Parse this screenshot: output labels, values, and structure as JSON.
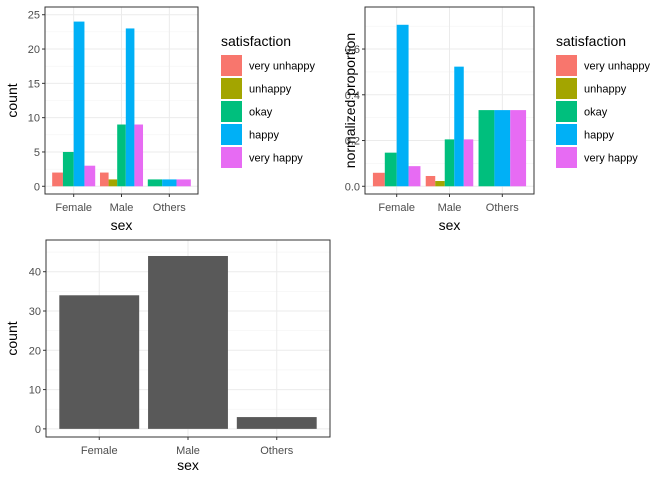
{
  "chart_data": [
    {
      "id": "p1",
      "type": "bar",
      "layout": "grouped",
      "xlabel": "sex",
      "ylabel": "count",
      "categories": [
        "Female",
        "Male",
        "Others"
      ],
      "ylim": [
        0,
        25
      ],
      "yticks": [
        0,
        5,
        10,
        15,
        20,
        25
      ],
      "ytick_labels": [
        "0",
        "5",
        "10",
        "15",
        "20",
        "25"
      ],
      "grid": true,
      "legend_title": "satisfaction",
      "legend_position": "right",
      "series": [
        {
          "name": "very unhappy",
          "color": "#F8766D",
          "values": [
            2,
            2,
            null
          ]
        },
        {
          "name": "unhappy",
          "color": "#A3A500",
          "values": [
            null,
            1,
            null
          ]
        },
        {
          "name": "okay",
          "color": "#00BF7D",
          "values": [
            5,
            9,
            1
          ]
        },
        {
          "name": "happy",
          "color": "#00B0F6",
          "values": [
            24,
            23,
            1
          ]
        },
        {
          "name": "very happy",
          "color": "#E76BF3",
          "values": [
            3,
            9,
            1
          ]
        }
      ]
    },
    {
      "id": "p2",
      "type": "bar",
      "layout": "grouped",
      "xlabel": "sex",
      "ylabel": "normalized proportion",
      "categories": [
        "Female",
        "Male",
        "Others"
      ],
      "ylim": [
        0,
        0.75
      ],
      "yticks": [
        0,
        0.2,
        0.4,
        0.6
      ],
      "ytick_labels": [
        "0.0",
        "0.2",
        "0.4",
        "0.6"
      ],
      "grid": true,
      "legend_title": "satisfaction",
      "legend_position": "right",
      "series": [
        {
          "name": "very unhappy",
          "color": "#F8766D",
          "values": [
            0.059,
            0.045,
            null
          ]
        },
        {
          "name": "unhappy",
          "color": "#A3A500",
          "values": [
            null,
            0.023,
            null
          ]
        },
        {
          "name": "okay",
          "color": "#00BF7D",
          "values": [
            0.147,
            0.205,
            0.333
          ]
        },
        {
          "name": "happy",
          "color": "#00B0F6",
          "values": [
            0.706,
            0.523,
            0.333
          ]
        },
        {
          "name": "very happy",
          "color": "#E76BF3",
          "values": [
            0.088,
            0.205,
            0.333
          ]
        }
      ]
    },
    {
      "id": "p3",
      "type": "bar",
      "layout": "single",
      "xlabel": "sex",
      "ylabel": "count",
      "categories": [
        "Female",
        "Male",
        "Others"
      ],
      "ylim": [
        0,
        46
      ],
      "yticks": [
        0,
        10,
        20,
        30,
        40
      ],
      "ytick_labels": [
        "0",
        "10",
        "20",
        "30",
        "40"
      ],
      "grid": true,
      "series": [
        {
          "name": "",
          "color": "#595959",
          "values": [
            34,
            44,
            3
          ]
        }
      ]
    }
  ]
}
